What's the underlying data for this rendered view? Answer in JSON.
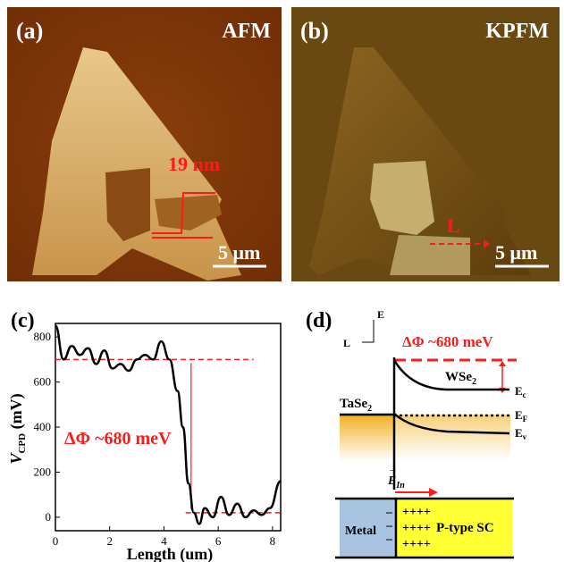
{
  "panel_a": {
    "label": "(a)",
    "title": "AFM",
    "height_label": "19 nm",
    "scale": "5 μm"
  },
  "panel_b": {
    "label": "(b)",
    "title": "KPFM",
    "line_label": "L",
    "scale": "5 μm"
  },
  "panel_c": {
    "label": "(c)",
    "annotation": "ΔΦ ~680 meV",
    "chart_data": {
      "type": "line",
      "xlabel": "Length (um)",
      "ylabel": "V_CPD (mV)",
      "xlim": [
        0,
        8.3
      ],
      "ylim": [
        -60,
        860
      ],
      "xticks": [
        "0",
        "2",
        "4",
        "6",
        "8"
      ],
      "yticks": [
        "0",
        "200",
        "400",
        "600",
        "800"
      ],
      "series": [
        {
          "x": [
            0,
            0.3,
            0.6,
            0.9,
            1.2,
            1.5,
            1.8,
            2.1,
            2.4,
            2.7,
            3.0,
            3.3,
            3.6,
            3.9,
            4.2,
            4.5,
            4.7,
            4.9,
            5.1,
            5.3,
            5.5,
            5.8,
            6.1,
            6.4,
            6.7,
            7.0,
            7.3,
            7.6,
            7.9,
            8.3
          ],
          "y": [
            850,
            700,
            760,
            720,
            750,
            680,
            740,
            660,
            680,
            650,
            700,
            720,
            700,
            780,
            700,
            560,
            400,
            150,
            20,
            -30,
            40,
            0,
            90,
            10,
            60,
            0,
            30,
            10,
            40,
            160
          ]
        }
      ],
      "reference_levels": [
        700,
        20
      ]
    }
  },
  "panel_d": {
    "label": "(d)",
    "axis_e": "E",
    "axis_l": "L",
    "delta_phi": "ΔΦ ~680 meV",
    "wse2": "WSe",
    "wse2_sub": "2",
    "tase2": "TaSe",
    "tase2_sub": "2",
    "ec": "E",
    "ec_sub": "c",
    "ef": "E",
    "ef_sub": "F",
    "ev": "E",
    "ev_sub": "v",
    "field": "E",
    "field_sub": "In",
    "metal": "Metal",
    "charges": "++++",
    "psc": "P-type SC"
  },
  "colors": {
    "red": "#ff1a1a",
    "metal": "#a9c4e0",
    "psc": "#ffff33",
    "gradient": "#f0b020"
  }
}
